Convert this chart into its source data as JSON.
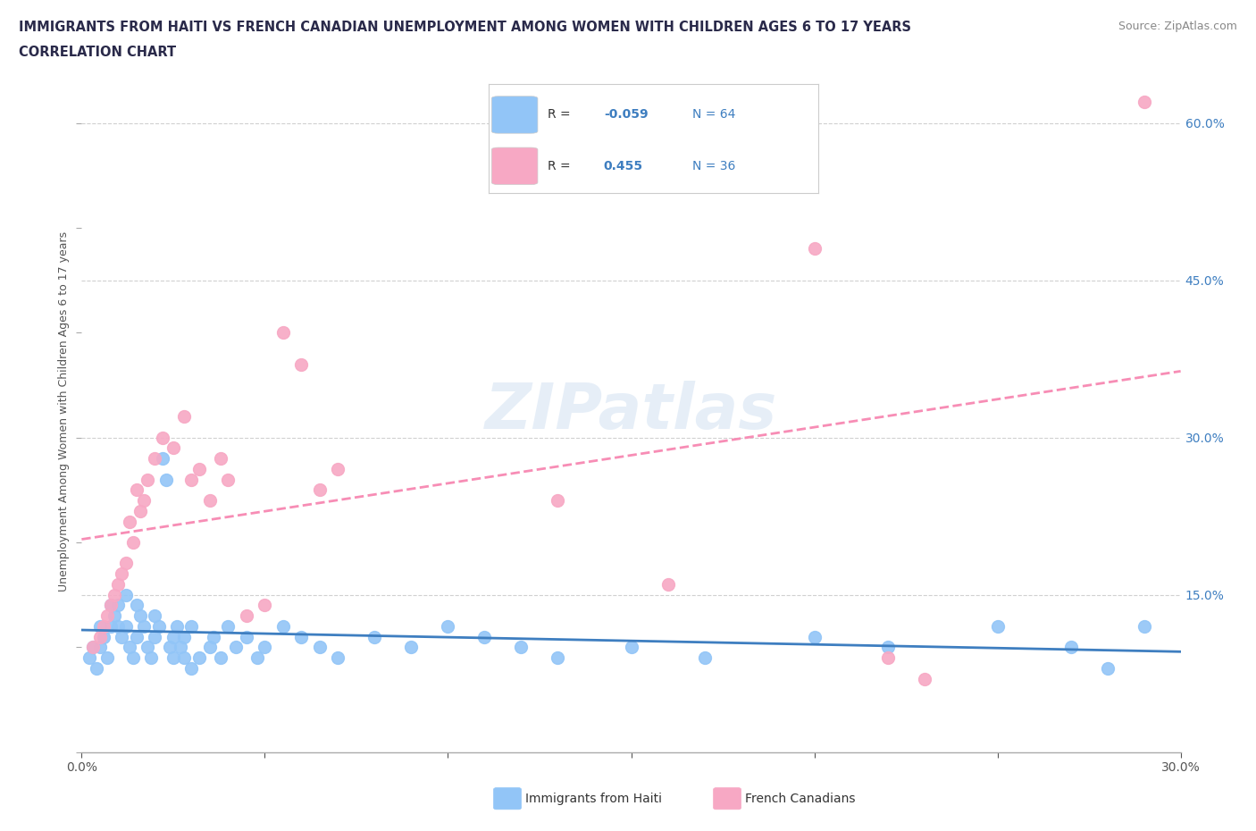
{
  "title_line1": "IMMIGRANTS FROM HAITI VS FRENCH CANADIAN UNEMPLOYMENT AMONG WOMEN WITH CHILDREN AGES 6 TO 17 YEARS",
  "title_line2": "CORRELATION CHART",
  "source_text": "Source: ZipAtlas.com",
  "ylabel": "Unemployment Among Women with Children Ages 6 to 17 years",
  "xlim": [
    0.0,
    0.3
  ],
  "ylim": [
    0.0,
    0.65
  ],
  "x_ticks": [
    0.0,
    0.05,
    0.1,
    0.15,
    0.2,
    0.25,
    0.3
  ],
  "x_tick_labels": [
    "0.0%",
    "",
    "",
    "",
    "",
    "",
    "30.0%"
  ],
  "y_ticks": [
    0.0,
    0.15,
    0.3,
    0.45,
    0.6
  ],
  "y_tick_labels": [
    "",
    "15.0%",
    "30.0%",
    "45.0%",
    "60.0%"
  ],
  "watermark": "ZIPatlas",
  "haiti_color": "#92c5f7",
  "french_color": "#f7a8c4",
  "haiti_line_color": "#3e7ec0",
  "french_line_color": "#f78db5",
  "gridline_color": "#d0d0d0",
  "title_color": "#2a2a4a",
  "source_color": "#888888",
  "right_axis_color": "#3e7ec0",
  "legend_r1_label": "R = ",
  "legend_r1_val": "-0.059",
  "legend_n1": "N = 64",
  "legend_r2_label": "R =  ",
  "legend_r2_val": "0.455",
  "legend_n2": "N = 36",
  "haiti_label": "Immigrants from Haiti",
  "french_label": "French Canadians",
  "haiti_scatter": [
    [
      0.002,
      0.09
    ],
    [
      0.003,
      0.1
    ],
    [
      0.004,
      0.08
    ],
    [
      0.005,
      0.1
    ],
    [
      0.005,
      0.12
    ],
    [
      0.006,
      0.11
    ],
    [
      0.007,
      0.09
    ],
    [
      0.008,
      0.12
    ],
    [
      0.008,
      0.14
    ],
    [
      0.009,
      0.13
    ],
    [
      0.01,
      0.14
    ],
    [
      0.01,
      0.12
    ],
    [
      0.011,
      0.11
    ],
    [
      0.012,
      0.12
    ],
    [
      0.012,
      0.15
    ],
    [
      0.013,
      0.1
    ],
    [
      0.014,
      0.09
    ],
    [
      0.015,
      0.11
    ],
    [
      0.015,
      0.14
    ],
    [
      0.016,
      0.13
    ],
    [
      0.017,
      0.12
    ],
    [
      0.018,
      0.1
    ],
    [
      0.019,
      0.09
    ],
    [
      0.02,
      0.11
    ],
    [
      0.02,
      0.13
    ],
    [
      0.021,
      0.12
    ],
    [
      0.022,
      0.28
    ],
    [
      0.023,
      0.26
    ],
    [
      0.024,
      0.1
    ],
    [
      0.025,
      0.09
    ],
    [
      0.025,
      0.11
    ],
    [
      0.026,
      0.12
    ],
    [
      0.027,
      0.1
    ],
    [
      0.028,
      0.11
    ],
    [
      0.028,
      0.09
    ],
    [
      0.03,
      0.12
    ],
    [
      0.03,
      0.08
    ],
    [
      0.032,
      0.09
    ],
    [
      0.035,
      0.1
    ],
    [
      0.036,
      0.11
    ],
    [
      0.038,
      0.09
    ],
    [
      0.04,
      0.12
    ],
    [
      0.042,
      0.1
    ],
    [
      0.045,
      0.11
    ],
    [
      0.048,
      0.09
    ],
    [
      0.05,
      0.1
    ],
    [
      0.055,
      0.12
    ],
    [
      0.06,
      0.11
    ],
    [
      0.065,
      0.1
    ],
    [
      0.07,
      0.09
    ],
    [
      0.08,
      0.11
    ],
    [
      0.09,
      0.1
    ],
    [
      0.1,
      0.12
    ],
    [
      0.11,
      0.11
    ],
    [
      0.12,
      0.1
    ],
    [
      0.13,
      0.09
    ],
    [
      0.15,
      0.1
    ],
    [
      0.17,
      0.09
    ],
    [
      0.2,
      0.11
    ],
    [
      0.22,
      0.1
    ],
    [
      0.25,
      0.12
    ],
    [
      0.27,
      0.1
    ],
    [
      0.28,
      0.08
    ],
    [
      0.29,
      0.12
    ]
  ],
  "french_scatter": [
    [
      0.003,
      0.1
    ],
    [
      0.005,
      0.11
    ],
    [
      0.006,
      0.12
    ],
    [
      0.007,
      0.13
    ],
    [
      0.008,
      0.14
    ],
    [
      0.009,
      0.15
    ],
    [
      0.01,
      0.16
    ],
    [
      0.011,
      0.17
    ],
    [
      0.012,
      0.18
    ],
    [
      0.013,
      0.22
    ],
    [
      0.014,
      0.2
    ],
    [
      0.015,
      0.25
    ],
    [
      0.016,
      0.23
    ],
    [
      0.017,
      0.24
    ],
    [
      0.018,
      0.26
    ],
    [
      0.02,
      0.28
    ],
    [
      0.022,
      0.3
    ],
    [
      0.025,
      0.29
    ],
    [
      0.028,
      0.32
    ],
    [
      0.03,
      0.26
    ],
    [
      0.032,
      0.27
    ],
    [
      0.035,
      0.24
    ],
    [
      0.038,
      0.28
    ],
    [
      0.04,
      0.26
    ],
    [
      0.045,
      0.13
    ],
    [
      0.05,
      0.14
    ],
    [
      0.055,
      0.4
    ],
    [
      0.06,
      0.37
    ],
    [
      0.065,
      0.25
    ],
    [
      0.07,
      0.27
    ],
    [
      0.13,
      0.24
    ],
    [
      0.16,
      0.16
    ],
    [
      0.2,
      0.48
    ],
    [
      0.22,
      0.09
    ],
    [
      0.23,
      0.07
    ],
    [
      0.29,
      0.62
    ]
  ]
}
